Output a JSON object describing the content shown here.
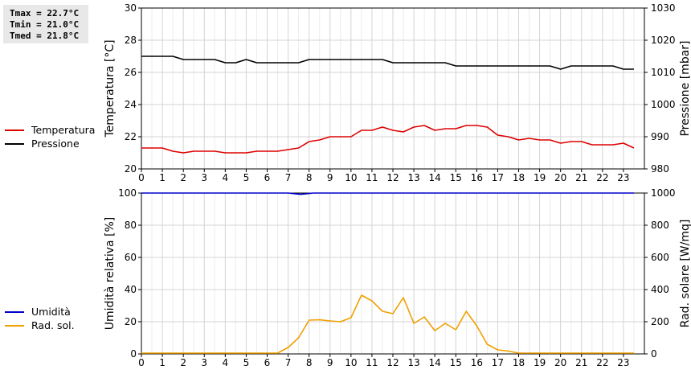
{
  "stats": {
    "tmax": "Tmax = 22.7°C",
    "tmin": "Tmin = 21.0°C",
    "tmed": "Tmed = 21.8°C"
  },
  "chart_data": [
    {
      "type": "line",
      "title": "",
      "xlabel": "",
      "x_ticks": [
        "0",
        "1",
        "2",
        "3",
        "4",
        "5",
        "6",
        "7",
        "8",
        "9",
        "10",
        "11",
        "12",
        "13",
        "14",
        "15",
        "16",
        "17",
        "18",
        "19",
        "20",
        "21",
        "22",
        "23"
      ],
      "xlim": [
        0,
        24
      ],
      "ylabel": "Temperatura [°C]",
      "ylim": [
        20,
        30
      ],
      "y_ticks": [
        "20",
        "22",
        "24",
        "26",
        "28",
        "30"
      ],
      "y2label": "Pressione [mbar]",
      "y2lim": [
        980,
        1030
      ],
      "y2_ticks": [
        "980",
        "990",
        "1000",
        "1010",
        "1020",
        "1030"
      ],
      "grid": true,
      "legend_position": "left",
      "series": [
        {
          "name": "Temperatura",
          "color": "#dd0000",
          "axis": "left",
          "x": [
            0,
            0.5,
            1,
            1.25,
            1.5,
            2,
            2.5,
            3,
            3.5,
            4,
            4.5,
            5,
            5.5,
            6,
            6.5,
            7,
            7.5,
            8,
            8.5,
            9,
            9.5,
            10,
            10.5,
            11,
            11.5,
            12,
            12.5,
            13,
            13.5,
            14,
            14.5,
            15,
            15.5,
            16,
            16.5,
            17,
            17.5,
            18,
            18.5,
            19,
            19.5,
            20,
            20.5,
            21,
            21.5,
            22,
            22.5,
            23,
            23.5
          ],
          "y": [
            21.3,
            21.3,
            21.3,
            21.2,
            21.1,
            21.0,
            21.1,
            21.1,
            21.1,
            21.0,
            21.0,
            21.0,
            21.1,
            21.1,
            21.1,
            21.2,
            21.3,
            21.7,
            21.8,
            22.0,
            22.0,
            22.0,
            22.4,
            22.4,
            22.6,
            22.4,
            22.3,
            22.6,
            22.7,
            22.4,
            22.5,
            22.5,
            22.7,
            22.7,
            22.6,
            22.1,
            22.0,
            21.8,
            21.9,
            21.8,
            21.8,
            21.6,
            21.7,
            21.7,
            21.5,
            21.5,
            21.5,
            21.6,
            21.3
          ]
        },
        {
          "name": "Pressione",
          "color": "#000000",
          "axis": "right",
          "x": [
            0,
            0.5,
            1,
            1.5,
            2,
            2.5,
            3,
            3.5,
            4,
            4.5,
            5,
            5.5,
            6,
            6.5,
            7,
            7.5,
            8,
            8.5,
            9,
            9.5,
            10,
            10.5,
            11,
            11.5,
            12,
            12.5,
            13,
            13.5,
            14,
            14.5,
            15,
            15.5,
            16,
            16.5,
            17,
            17.5,
            18,
            18.5,
            19,
            19.5,
            20,
            20.5,
            21,
            21.5,
            22,
            22.5,
            23,
            23.5
          ],
          "y": [
            1015,
            1015,
            1015,
            1015,
            1014,
            1014,
            1014,
            1014,
            1013,
            1013,
            1014,
            1013,
            1013,
            1013,
            1013,
            1013,
            1014,
            1014,
            1014,
            1014,
            1014,
            1014,
            1014,
            1014,
            1013,
            1013,
            1013,
            1013,
            1013,
            1013,
            1012,
            1012,
            1012,
            1012,
            1012,
            1012,
            1012,
            1012,
            1012,
            1012,
            1011,
            1012,
            1012,
            1012,
            1012,
            1012,
            1011,
            1011
          ]
        }
      ]
    },
    {
      "type": "line",
      "title": "",
      "xlabel": "",
      "x_ticks": [
        "0",
        "1",
        "2",
        "3",
        "4",
        "5",
        "6",
        "7",
        "8",
        "9",
        "10",
        "11",
        "12",
        "13",
        "14",
        "15",
        "16",
        "17",
        "18",
        "19",
        "20",
        "21",
        "22",
        "23"
      ],
      "xlim": [
        0,
        24
      ],
      "ylabel": "Umidità relativa [%]",
      "ylim": [
        0,
        100
      ],
      "y_ticks": [
        "0",
        "20",
        "40",
        "60",
        "80",
        "100"
      ],
      "y2label": "Rad. solare [W/mq]",
      "y2lim": [
        0,
        1000
      ],
      "y2_ticks": [
        "0",
        "200",
        "400",
        "600",
        "800",
        "1000"
      ],
      "grid": true,
      "legend_position": "left",
      "series": [
        {
          "name": "Umidità",
          "color": "#0000cc",
          "axis": "left",
          "x": [
            0,
            1,
            2,
            3,
            4,
            5,
            6,
            7,
            7.3,
            7.6,
            7.9,
            8.2,
            9,
            10,
            11,
            12,
            13,
            14,
            15,
            16,
            17,
            18,
            19,
            20,
            21,
            22,
            23,
            23.5
          ],
          "y": [
            100,
            100,
            100,
            100,
            100,
            100,
            100,
            100,
            99.6,
            99.2,
            99.6,
            100,
            100,
            100,
            100,
            100,
            100,
            100,
            100,
            100,
            100,
            100,
            100,
            100,
            100,
            100,
            100,
            100
          ]
        },
        {
          "name": "Rad. sol.",
          "color": "#f0a000",
          "axis": "right",
          "x": [
            0,
            0.5,
            1,
            1.5,
            2,
            2.5,
            3,
            3.5,
            4,
            4.5,
            5,
            5.5,
            6,
            6.5,
            7,
            7.5,
            8,
            8.5,
            9,
            9.5,
            10,
            10.5,
            11,
            11.5,
            12,
            12.5,
            13,
            13.5,
            14,
            14.5,
            15,
            15.5,
            16,
            16.5,
            17,
            17.5,
            18,
            18.5,
            19,
            19.5,
            20,
            20.5,
            21,
            21.5,
            22,
            22.5,
            23,
            23.5
          ],
          "y": [
            5,
            5,
            5,
            5,
            5,
            5,
            5,
            5,
            5,
            5,
            5,
            5,
            5,
            5,
            40,
            100,
            210,
            212,
            205,
            200,
            225,
            365,
            330,
            265,
            250,
            350,
            190,
            230,
            145,
            190,
            150,
            265,
            175,
            60,
            25,
            18,
            5,
            5,
            5,
            5,
            5,
            5,
            5,
            5,
            5,
            5,
            5,
            5
          ]
        }
      ]
    }
  ]
}
